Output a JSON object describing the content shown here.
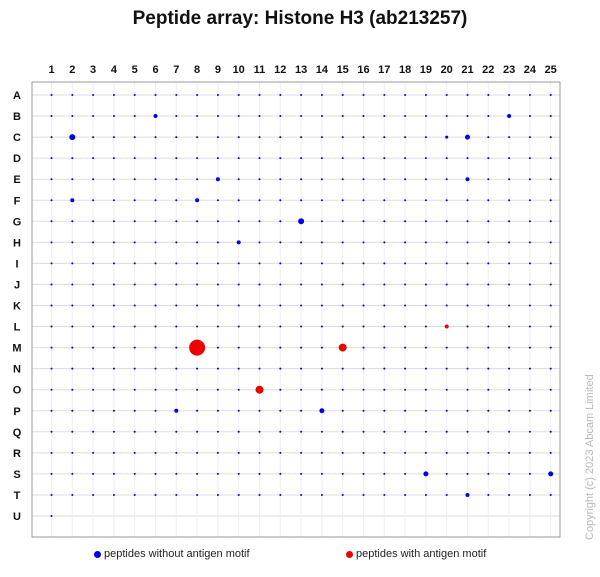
{
  "chart_data": {
    "type": "scatter",
    "title": "Peptide array:  Histone H3 (ab213257)",
    "columns": [
      "1",
      "2",
      "3",
      "4",
      "5",
      "6",
      "7",
      "8",
      "9",
      "10",
      "11",
      "12",
      "13",
      "14",
      "15",
      "16",
      "17",
      "18",
      "19",
      "20",
      "21",
      "22",
      "23",
      "24",
      "25"
    ],
    "rows": [
      "A",
      "B",
      "C",
      "D",
      "E",
      "F",
      "G",
      "H",
      "I",
      "J",
      "K",
      "L",
      "M",
      "N",
      "O",
      "P",
      "Q",
      "R",
      "S",
      "T",
      "U"
    ],
    "grid": true,
    "legend_position": "bottom",
    "series": [
      {
        "name": "peptides without antigen motif",
        "color": "#0000ee",
        "points": [
          {
            "col": 6,
            "row": "B",
            "size": 2
          },
          {
            "col": 23,
            "row": "B",
            "size": 2
          },
          {
            "col": 2,
            "row": "C",
            "size": 3
          },
          {
            "col": 20,
            "row": "C",
            "size": 1.5
          },
          {
            "col": 21,
            "row": "C",
            "size": 2.5
          },
          {
            "col": 9,
            "row": "E",
            "size": 2
          },
          {
            "col": 21,
            "row": "E",
            "size": 2
          },
          {
            "col": 2,
            "row": "F",
            "size": 2
          },
          {
            "col": 8,
            "row": "F",
            "size": 2
          },
          {
            "col": 13,
            "row": "G",
            "size": 3
          },
          {
            "col": 10,
            "row": "H",
            "size": 2
          },
          {
            "col": 7,
            "row": "P",
            "size": 2
          },
          {
            "col": 14,
            "row": "P",
            "size": 2.5
          },
          {
            "col": 19,
            "row": "S",
            "size": 2.5
          },
          {
            "col": 25,
            "row": "S",
            "size": 2.5
          },
          {
            "col": 21,
            "row": "T",
            "size": 2
          }
        ]
      },
      {
        "name": "peptides with antigen motif",
        "color": "#ee0000",
        "points": [
          {
            "col": 20,
            "row": "L",
            "size": 2
          },
          {
            "col": 8,
            "row": "M",
            "size": 8
          },
          {
            "col": 15,
            "row": "M",
            "size": 4
          },
          {
            "col": 11,
            "row": "O",
            "size": 4
          }
        ]
      }
    ]
  },
  "copyright": "Copyright (c) 2023 Abcam Limited"
}
